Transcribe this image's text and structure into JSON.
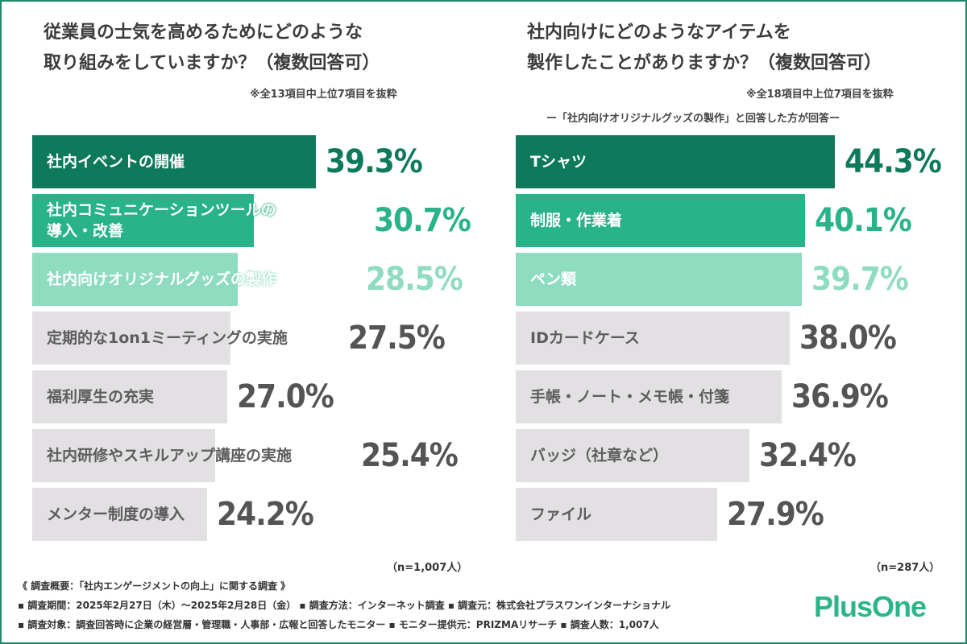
{
  "colors": {
    "frame": "#1f8a6b",
    "dark": "#0f7a5b",
    "medium": "#2ab389",
    "light": "#8fdcc0",
    "gray": "#e2e0e3",
    "gray_text": "#5d5d5d",
    "value_gray": "#545454"
  },
  "chart_data": [
    {
      "type": "bar",
      "orientation": "horizontal",
      "title": "従業員の士気を高めるためにどのような取り組みをしていますか？（複数回答可）",
      "title_lines": [
        "従業員の士気を高めるためにどのような",
        "取り組みをしていますか？（複数回答可）"
      ],
      "note": "※全13項目中上位7項目を抜粋",
      "subnote": "",
      "sample": "（n=1,007人）",
      "categories": [
        "社内イベントの開催",
        "社内コミュニケーションツールの導入・改善",
        "社内向けオリジナルグッズの製作",
        "定期的な1on1ミーティングの実施",
        "福利厚生の充実",
        "社内研修やスキルアップ講座の実施",
        "メンター制度の導入"
      ],
      "label_lines": [
        [
          "社内イベントの開催"
        ],
        [
          "社内コミュニケーションツールの",
          "導入・改善"
        ],
        [
          "社内向けオリジナルグッズの製作"
        ],
        [
          "定期的な1on1ミーティングの実施"
        ],
        [
          "福利厚生の充実"
        ],
        [
          "社内研修やスキルアップ講座の実施"
        ],
        [
          "メンター制度の導入"
        ]
      ],
      "values": [
        39.3,
        30.7,
        28.5,
        27.5,
        27.0,
        25.4,
        24.2
      ],
      "value_labels": [
        "39.3%",
        "30.7%",
        "28.5%",
        "27.5%",
        "27.0%",
        "25.4%",
        "24.2%"
      ],
      "shades": [
        "dark",
        "medium",
        "light",
        "gray",
        "gray",
        "gray",
        "gray"
      ],
      "xlim": [
        0,
        50
      ]
    },
    {
      "type": "bar",
      "orientation": "horizontal",
      "title": "社内向けにどのようなアイテムを製作したことがありますか？（複数回答可）",
      "title_lines": [
        "社内向けにどのようなアイテムを",
        "製作したことがありますか？（複数回答可）"
      ],
      "note": "※全18項目中上位7項目を抜粋",
      "subnote": "ー「社内向けオリジナルグッズの製作」と回答した方が回答ー",
      "sample": "（n=287人）",
      "categories": [
        "Tシャツ",
        "制服・作業着",
        "ペン類",
        "IDカードケース",
        "手帳・ノート・メモ帳・付箋",
        "バッジ（社章など）",
        "ファイル"
      ],
      "label_lines": [
        [
          "Tシャツ"
        ],
        [
          "制服・作業着"
        ],
        [
          "ペン類"
        ],
        [
          "IDカードケース"
        ],
        [
          "手帳・ノート・メモ帳・付箋"
        ],
        [
          "バッジ（社章など）"
        ],
        [
          "ファイル"
        ]
      ],
      "values": [
        44.3,
        40.1,
        39.7,
        38.0,
        36.9,
        32.4,
        27.9
      ],
      "value_labels": [
        "44.3%",
        "40.1%",
        "39.7%",
        "38.0%",
        "36.9%",
        "32.4%",
        "27.9%"
      ],
      "shades": [
        "dark",
        "medium",
        "light",
        "gray",
        "gray",
        "gray",
        "gray"
      ],
      "xlim": [
        0,
        50
      ]
    }
  ],
  "survey": {
    "heading": "《 調査概要：「社内エンゲージメントの向上」に関する調査 》",
    "line1": "▪ 調査期間：2025年2月27日（木）～2025年2月28日（金）  ▪ 調査方法：インターネット調査  ▪ 調査元：株式会社プラスワンインターナショナル",
    "line2": "▪ 調査対象：調査回答時に企業の経営層・管理職・人事部・広報と回答したモニター  ▪ モニター提供元：PRIZMAリサーチ   ▪ 調査人数：1,007人"
  },
  "logo": "PlusOne"
}
